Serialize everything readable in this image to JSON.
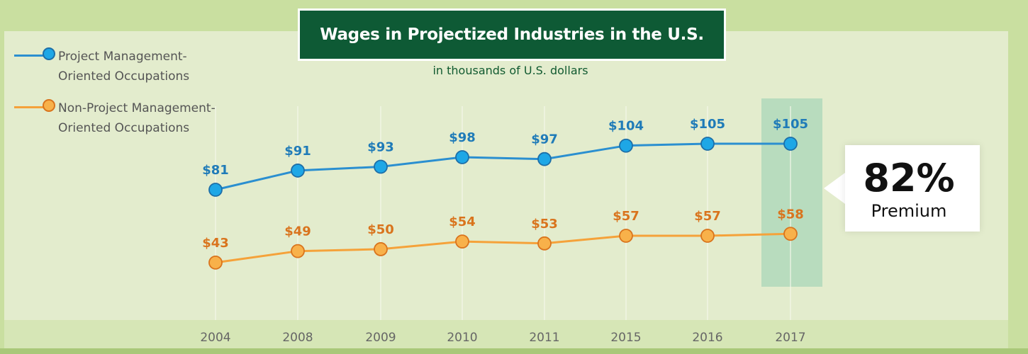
{
  "chart_data": {
    "type": "line",
    "title": "Wages in Projectized Industries in the U.S.",
    "subtitle": "in thousands of U.S. dollars",
    "categories": [
      "2004",
      "2008",
      "2009",
      "2010",
      "2011",
      "2015",
      "2016",
      "2017"
    ],
    "series": [
      {
        "name": "Project Management-Oriented Occupations",
        "legend_lines": [
          "Project Management-",
          "Oriented Occupations"
        ],
        "values": [
          81,
          91,
          93,
          98,
          97,
          104,
          105,
          105
        ],
        "labels": [
          "$81",
          "$91",
          "$93",
          "$98",
          "$97",
          "$104",
          "$105",
          "$105"
        ],
        "color": "#2b8fd0"
      },
      {
        "name": "Non-Project Management-Oriented Occupations",
        "legend_lines": [
          "Non-Project Management-",
          "Oriented Occupations"
        ],
        "values": [
          43,
          49,
          50,
          54,
          53,
          57,
          57,
          58
        ],
        "labels": [
          "$43",
          "$49",
          "$50",
          "$54",
          "$53",
          "$57",
          "$57",
          "$58"
        ],
        "color": "#f5a23a"
      }
    ],
    "ylim": [
      30,
      115
    ],
    "grid": "vertical",
    "legend_position": "top-left",
    "highlight_category": "2017",
    "callout": {
      "value": "82%",
      "text": "Premium"
    }
  },
  "colors": {
    "background": "#c9dfa0",
    "panel": "#e3eccd",
    "title_box": "#0e5a35",
    "highlight": "#a9d7b8",
    "blue_label": "#1f7bb8",
    "orange_label": "#d9741d"
  }
}
